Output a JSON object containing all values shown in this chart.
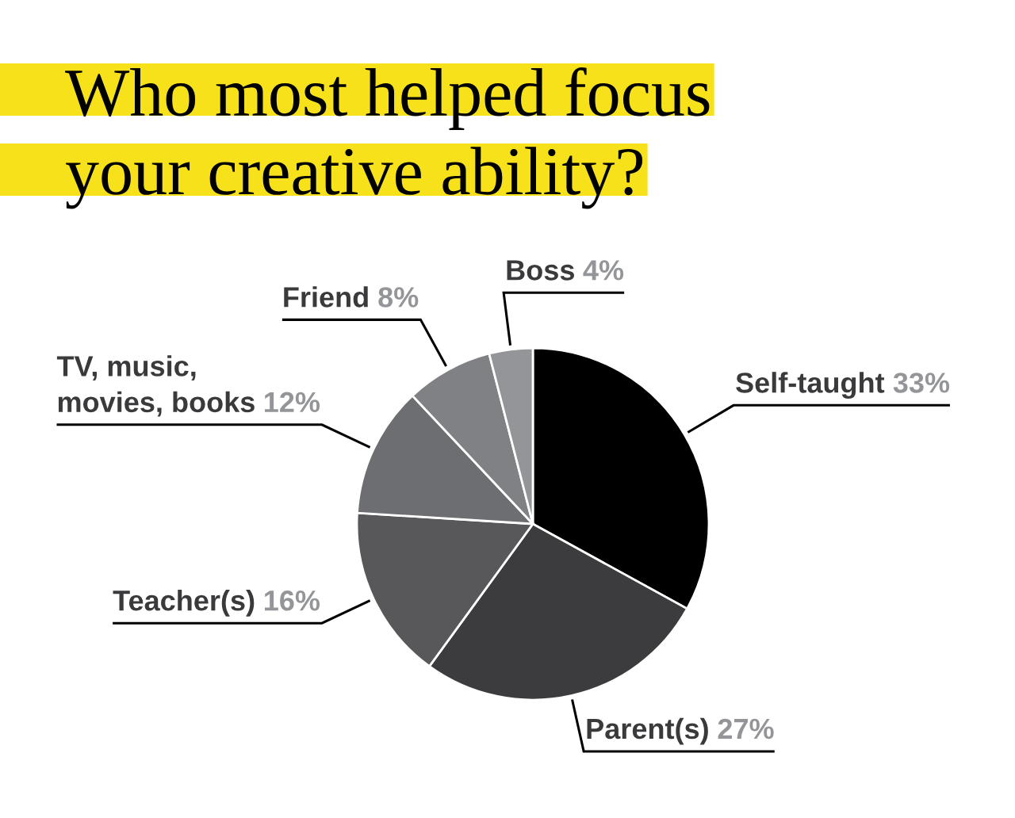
{
  "chart_data": {
    "type": "pie",
    "title": "Who most helped focus\nyour creative ability?",
    "categories": [
      "Self-taught",
      "Parent(s)",
      "Teacher(s)",
      "TV, music,\nmovies, books",
      "Friend",
      "Boss"
    ],
    "values": [
      33,
      27,
      16,
      12,
      8,
      4
    ],
    "colors": [
      "#000000",
      "#3c3c3e",
      "#58585a",
      "#6d6e71",
      "#808184",
      "#939598"
    ],
    "value_labels": [
      "33%",
      "27%",
      "16%",
      "12%",
      "8%",
      "4%"
    ]
  }
}
